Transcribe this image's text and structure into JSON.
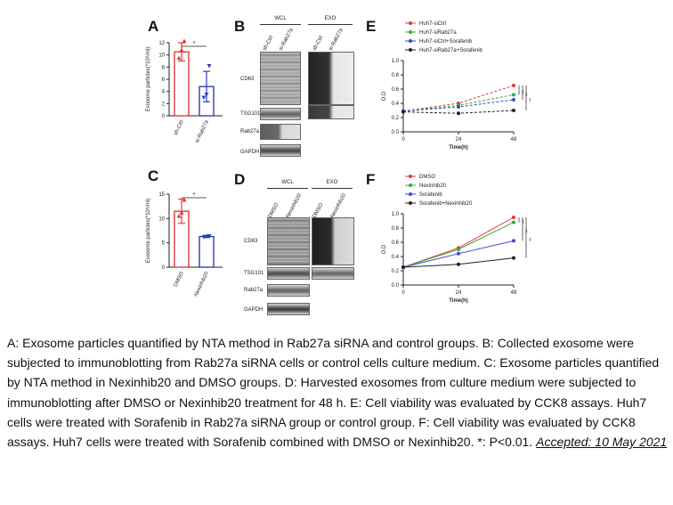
{
  "panels": {
    "A": {
      "letter": "A",
      "ylabel": "Exosome particles(*10⁸/ml)",
      "sig": "*",
      "chart_data": {
        "type": "bar",
        "categories": [
          "sh-Ctrl",
          "si-Rab27a"
        ],
        "values": [
          10.5,
          4.8
        ],
        "errors": [
          1.5,
          2.5
        ],
        "points": [
          [
            9.5,
            10.8,
            12.3
          ],
          [
            3.0,
            3.5,
            8.2
          ]
        ],
        "ylim": [
          0,
          12
        ],
        "yticks": [
          "0",
          "2",
          "4",
          "6",
          "8",
          "10",
          "12"
        ],
        "colors": [
          "#e23a3a",
          "#2f3fb8"
        ]
      }
    },
    "B": {
      "letter": "B",
      "groups": [
        "WCL",
        "EXO"
      ],
      "lanes": [
        "sh-Ctrl",
        "si-Rab27a",
        "sh-Ctrl",
        "si-Rab27a"
      ],
      "bands": [
        "CD63",
        "TSG101",
        "Rab27a",
        "GAPDH"
      ]
    },
    "C": {
      "letter": "C",
      "ylabel": "Exosome particles(*10⁸/ml)",
      "sig": "*",
      "chart_data": {
        "type": "bar",
        "categories": [
          "DMSO",
          "Nexinhib20"
        ],
        "values": [
          11.5,
          6.3
        ],
        "errors": [
          2.5,
          0.2
        ],
        "points": [
          [
            10.5,
            11.2,
            13.8
          ],
          [
            6.2,
            6.3,
            6.4
          ]
        ],
        "ylim": [
          0,
          15
        ],
        "yticks": [
          "0",
          "5",
          "10",
          "15"
        ],
        "colors": [
          "#e23a3a",
          "#2f3fb8"
        ]
      }
    },
    "D": {
      "letter": "D",
      "groups": [
        "WCL",
        "EXO"
      ],
      "lanes": [
        "DMSO",
        "Nexinhib20",
        "DMSO",
        "Nexinhib20"
      ],
      "bands": [
        "CD63",
        "TSG101",
        "Rab27a",
        "GAPDH"
      ]
    },
    "E": {
      "letter": "E",
      "sig": [
        "**",
        "**",
        "**"
      ],
      "chart_data": {
        "type": "line",
        "x": [
          0,
          24,
          48
        ],
        "xticks": [
          "0",
          "24",
          "48"
        ],
        "xlabel": "Time(h)",
        "ylabel": "O.D",
        "ylim": [
          0,
          1.0
        ],
        "yticks": [
          "0.0",
          "0.2",
          "0.4",
          "0.6",
          "0.8",
          "1.0"
        ],
        "series": [
          {
            "name": "Huh7-siCtrl",
            "values": [
              0.29,
              0.4,
              0.65
            ],
            "color": "#e23a3a"
          },
          {
            "name": "Huh7-siRab27a",
            "values": [
              0.29,
              0.37,
              0.52
            ],
            "color": "#3aa83a"
          },
          {
            "name": "Huh7-siCtrl+Sorafenib",
            "values": [
              0.29,
              0.35,
              0.45
            ],
            "color": "#3a4ad8"
          },
          {
            "name": "Huh7-siRab27a+Sorafenib",
            "values": [
              0.28,
              0.26,
              0.3
            ],
            "color": "#222222"
          }
        ]
      }
    },
    "F": {
      "letter": "F",
      "sig": [
        "**",
        "**",
        "**"
      ],
      "chart_data": {
        "type": "line",
        "x": [
          0,
          24,
          48
        ],
        "xticks": [
          "0",
          "24",
          "48"
        ],
        "xlabel": "Time(h)",
        "ylabel": "O.D",
        "ylim": [
          0,
          1.0
        ],
        "yticks": [
          "0.0",
          "0.2",
          "0.4",
          "0.6",
          "0.8",
          "1.0"
        ],
        "series": [
          {
            "name": "DMSO",
            "values": [
              0.25,
              0.52,
              0.95
            ],
            "color": "#e23a3a"
          },
          {
            "name": "Nexinhib20",
            "values": [
              0.25,
              0.5,
              0.88
            ],
            "color": "#3aa83a"
          },
          {
            "name": "Sorafenib",
            "values": [
              0.25,
              0.44,
              0.62
            ],
            "color": "#3a4ad8"
          },
          {
            "name": "Sorafenib+Nexinhib20",
            "values": [
              0.25,
              0.29,
              0.38
            ],
            "color": "#222222"
          }
        ]
      }
    }
  },
  "caption": {
    "text": "A: Exosome particles quantified by NTA method in Rab27a siRNA and control groups. B: Collected exosome were subjected to immunoblotting from Rab27a siRNA cells or control cells culture medium. C: Exosome particles quantified by NTA method in Nexinhib20 and DMSO groups. D: Harvested exosomes from culture medium were subjected to immunoblotting after DMSO or Nexinhib20 treatment for 48 h. E: Cell viability was evaluated by CCK8 assays. Huh7 cells were treated with Sorafenib in Rab27a siRNA group or control group. F: Cell viability was evaluated by CCK8 assays. Huh7 cells were treated with Sorafenib combined with DMSO or Nexinhib20. *: P<0.01. ",
    "accepted": "Accepted: 10 May 2021"
  }
}
